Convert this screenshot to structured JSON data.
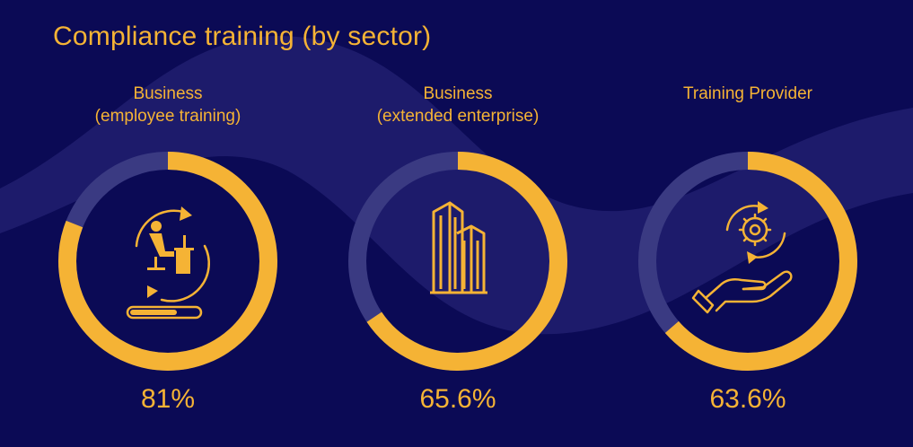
{
  "title": "Compliance training (by sector)",
  "colors": {
    "background": "#0b0a55",
    "wave": "#1d1b6b",
    "accent": "#f5b335",
    "track": "#3a3a82"
  },
  "chart_data": [
    {
      "type": "pie",
      "label_lines": [
        "Business",
        "(employee training)"
      ],
      "value": 81,
      "value_label": "81%",
      "icon": "person-at-desk-with-cycle-arrows-and-progress-bar-icon"
    },
    {
      "type": "pie",
      "label_lines": [
        "Business",
        "(extended enterprise)"
      ],
      "value": 65.6,
      "value_label": "65.6%",
      "icon": "office-buildings-icon"
    },
    {
      "type": "pie",
      "label_lines": [
        "Training Provider"
      ],
      "value": 63.6,
      "value_label": "63.6%",
      "icon": "hand-holding-gear-icon"
    }
  ]
}
